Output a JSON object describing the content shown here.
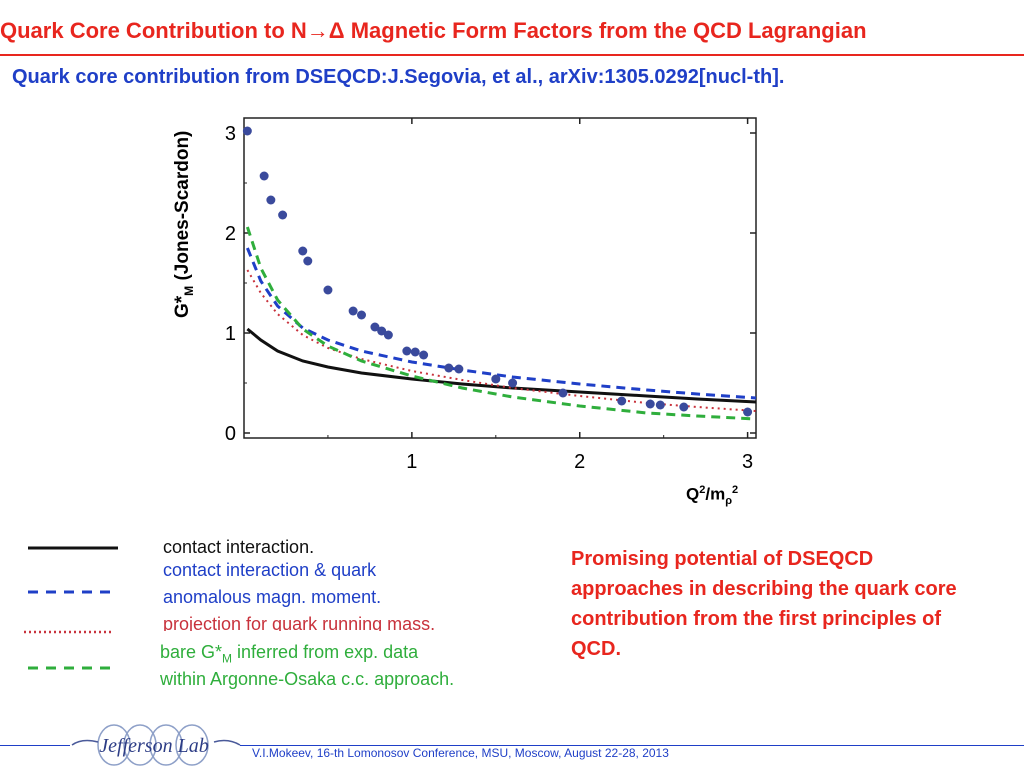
{
  "header": {
    "title": "Quark Core Contribution to  N→Δ Magnetic Form Factors from the QCD Lagrangian",
    "subtitle": "Quark core contribution from DSEQCD:J.Segovia, et al., arXiv:1305.0292[nucl-th]."
  },
  "chart_data": {
    "type": "scatter",
    "xlabel": "Q²/mρ²",
    "ylabel": "G*M (Jones-Scardon)",
    "xlim": [
      0,
      3.05
    ],
    "ylim": [
      -0.05,
      3.15
    ],
    "x_ticks": [
      1,
      2,
      3
    ],
    "y_ticks": [
      0,
      1,
      2,
      3
    ],
    "grid": false,
    "series": [
      {
        "style": "points",
        "color": "#3a4a9c",
        "x": [
          0.02,
          0.12,
          0.16,
          0.23,
          0.35,
          0.38,
          0.5,
          0.65,
          0.7,
          0.78,
          0.82,
          0.86,
          0.97,
          1.02,
          1.07,
          1.22,
          1.28,
          1.5,
          1.6,
          1.9,
          2.25,
          2.42,
          2.48,
          2.62,
          3.0
        ],
        "y": [
          3.02,
          2.57,
          2.33,
          2.18,
          1.82,
          1.72,
          1.43,
          1.22,
          1.18,
          1.06,
          1.02,
          0.98,
          0.82,
          0.81,
          0.78,
          0.65,
          0.64,
          0.54,
          0.5,
          0.4,
          0.32,
          0.29,
          0.28,
          0.26,
          0.21
        ]
      },
      {
        "name": "contact interaction.",
        "style": "solid",
        "color": "#111111",
        "x": [
          0.02,
          0.1,
          0.2,
          0.35,
          0.5,
          0.7,
          1.0,
          1.3,
          1.6,
          2.0,
          2.4,
          2.7,
          3.05
        ],
        "y": [
          1.04,
          0.93,
          0.82,
          0.72,
          0.66,
          0.6,
          0.54,
          0.49,
          0.45,
          0.41,
          0.37,
          0.34,
          0.31
        ]
      },
      {
        "name": "contact interaction & quark anomalous magn. moment.",
        "style": "dashed",
        "color": "#1f3fc7",
        "x": [
          0.02,
          0.1,
          0.2,
          0.35,
          0.5,
          0.7,
          1.0,
          1.3,
          1.6,
          2.0,
          2.4,
          2.7,
          3.05
        ],
        "y": [
          1.85,
          1.52,
          1.27,
          1.05,
          0.93,
          0.82,
          0.71,
          0.63,
          0.56,
          0.49,
          0.43,
          0.39,
          0.35
        ]
      },
      {
        "name": "projection for quark running mass.",
        "style": "dotted",
        "color": "#c8323c",
        "x": [
          0.02,
          0.1,
          0.2,
          0.35,
          0.5,
          0.7,
          1.0,
          1.3,
          1.6,
          2.0,
          2.4,
          2.7,
          3.05
        ],
        "y": [
          1.63,
          1.4,
          1.19,
          0.98,
          0.85,
          0.74,
          0.62,
          0.53,
          0.45,
          0.37,
          0.3,
          0.26,
          0.22
        ]
      },
      {
        "name": "bare G*M inferred from exp. data within Argonne-Osaka c.c. approach.",
        "style": "dashed",
        "color": "#2fae3c",
        "x": [
          0.02,
          0.1,
          0.2,
          0.35,
          0.5,
          0.7,
          1.0,
          1.3,
          1.6,
          2.0,
          2.4,
          2.7,
          3.05
        ],
        "y": [
          2.06,
          1.65,
          1.33,
          1.04,
          0.87,
          0.72,
          0.57,
          0.45,
          0.36,
          0.27,
          0.2,
          0.17,
          0.14
        ]
      }
    ]
  },
  "legend": {
    "item1": "contact interaction.",
    "item2a": "contact interaction & quark",
    "item2b": "anomalous magn. moment.",
    "item3": "projection for quark running mass.",
    "item4a_pre": "bare G*",
    "item4a_sub": "M",
    "item4a_post": " inferred from exp. data",
    "item4b": "within Argonne-Osaka c.c. approach."
  },
  "axis_text": {
    "y_main": "G*",
    "y_sub": "M",
    "y_rest": " (Jones-Scardon)",
    "x_main": "Q",
    "x_sup": "2",
    "x_mid": "/m",
    "x_sub": "ρ",
    "x_sup2": "2"
  },
  "note": "Promising potential of DSEQCD approaches in describing the quark core contribution from the first principles of QCD.",
  "footer": {
    "text": "V.I.Mokeev, 16-th Lomonosov Conference, MSU, Moscow, August 22-28, 2013",
    "logo_text": "Jefferson Lab"
  }
}
